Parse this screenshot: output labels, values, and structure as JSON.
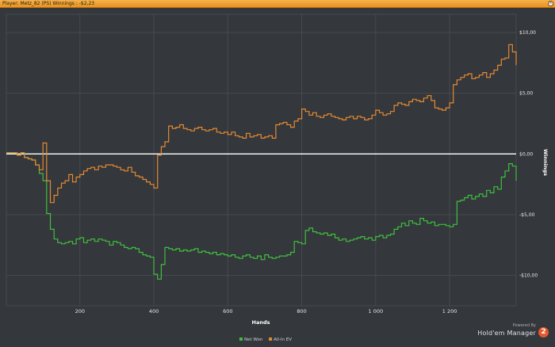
{
  "window": {
    "title": "Player: Metz_82 (PS) Winnings : -$2,23",
    "close_icon": "close-icon"
  },
  "colors": {
    "background": "#34373b",
    "grid": "#464a4f",
    "zero_line": "#ffffff",
    "net_won": "#3fbf3f",
    "all_in_ev": "#e58a32",
    "titlebar": "#f0a23a"
  },
  "branding": {
    "powered_by": "Powered By",
    "product": "Hold'em Manager",
    "logo_text": "2"
  },
  "chart_data": {
    "type": "line",
    "title": "",
    "xlabel": "Hands",
    "ylabel": "Winnings",
    "xlim": [
      1,
      1380
    ],
    "ylim": [
      -12.5,
      11.5
    ],
    "x_ticks": [
      {
        "value": 200,
        "label": "200"
      },
      {
        "value": 400,
        "label": "400"
      },
      {
        "value": 600,
        "label": "600"
      },
      {
        "value": 800,
        "label": "800"
      },
      {
        "value": 1000,
        "label": "1 000"
      },
      {
        "value": 1200,
        "label": "1 200"
      }
    ],
    "y_ticks": [
      {
        "value": 10,
        "label": "$10,00"
      },
      {
        "value": 5,
        "label": "$5,00"
      },
      {
        "value": 0,
        "label": "$0,00"
      },
      {
        "value": -5,
        "label": "-$5,00"
      },
      {
        "value": -10,
        "label": "-$10,00"
      }
    ],
    "grid": true,
    "legend": "bottom-center",
    "series": [
      {
        "name": "Net Won",
        "color": "#3fbf3f",
        "x": [
          1,
          20,
          30,
          40,
          50,
          60,
          70,
          80,
          90,
          100,
          110,
          120,
          130,
          140,
          150,
          160,
          170,
          180,
          190,
          200,
          210,
          220,
          230,
          240,
          250,
          260,
          270,
          280,
          290,
          300,
          310,
          320,
          330,
          340,
          350,
          360,
          370,
          380,
          390,
          400,
          410,
          420,
          430,
          440,
          450,
          460,
          470,
          480,
          490,
          500,
          510,
          520,
          530,
          540,
          550,
          560,
          570,
          580,
          590,
          600,
          610,
          620,
          630,
          640,
          650,
          660,
          670,
          680,
          690,
          700,
          710,
          720,
          730,
          740,
          750,
          760,
          770,
          780,
          790,
          800,
          810,
          820,
          830,
          840,
          850,
          860,
          870,
          880,
          890,
          900,
          910,
          920,
          930,
          940,
          950,
          960,
          970,
          980,
          990,
          1000,
          1010,
          1020,
          1030,
          1040,
          1050,
          1060,
          1070,
          1080,
          1090,
          1100,
          1110,
          1120,
          1130,
          1140,
          1150,
          1160,
          1170,
          1180,
          1190,
          1200,
          1210,
          1220,
          1230,
          1240,
          1250,
          1260,
          1270,
          1280,
          1290,
          1300,
          1310,
          1320,
          1330,
          1340,
          1350,
          1360,
          1370,
          1380
        ],
        "y": [
          0.1,
          0.1,
          -0.1,
          0.1,
          -0.3,
          -0.4,
          -0.5,
          -0.9,
          -1.6,
          -2.2,
          -4.9,
          -6.2,
          -7.0,
          -7.3,
          -7.4,
          -7.3,
          -7.2,
          -7.4,
          -7.0,
          -6.9,
          -7.3,
          -7.1,
          -7.0,
          -7.2,
          -7.0,
          -7.1,
          -7.2,
          -7.5,
          -7.2,
          -7.3,
          -7.5,
          -7.7,
          -7.8,
          -7.7,
          -7.8,
          -8.1,
          -8.3,
          -8.4,
          -8.5,
          -9.9,
          -10.3,
          -9.1,
          -7.7,
          -7.8,
          -7.9,
          -7.8,
          -8.0,
          -7.9,
          -8.0,
          -7.9,
          -7.8,
          -8.1,
          -8.0,
          -8.1,
          -8.2,
          -8.1,
          -8.3,
          -8.2,
          -8.3,
          -8.4,
          -8.3,
          -8.5,
          -8.6,
          -8.4,
          -8.3,
          -8.5,
          -8.6,
          -8.4,
          -8.7,
          -8.3,
          -8.5,
          -8.6,
          -8.5,
          -8.4,
          -8.4,
          -8.3,
          -8.1,
          -7.2,
          -7.3,
          -7.4,
          -6.3,
          -6.1,
          -6.4,
          -6.5,
          -6.6,
          -6.5,
          -6.7,
          -6.6,
          -6.9,
          -7.1,
          -7.0,
          -7.2,
          -7.1,
          -7.0,
          -6.9,
          -6.8,
          -7.0,
          -6.9,
          -7.1,
          -6.8,
          -6.7,
          -6.9,
          -6.7,
          -6.6,
          -6.2,
          -6.0,
          -5.7,
          -5.9,
          -5.5,
          -5.7,
          -5.8,
          -5.3,
          -5.5,
          -5.7,
          -5.6,
          -5.9,
          -5.8,
          -5.8,
          -5.9,
          -6.0,
          -5.8,
          -3.9,
          -3.8,
          -3.6,
          -3.4,
          -3.7,
          -3.5,
          -3.3,
          -3.5,
          -3.0,
          -3.2,
          -2.7,
          -2.9,
          -1.9,
          -1.4,
          -0.8,
          -1.0,
          -2.2
        ]
      },
      {
        "name": "All-In EV",
        "color": "#e58a32",
        "x": [
          1,
          20,
          30,
          40,
          50,
          60,
          70,
          80,
          90,
          100,
          110,
          120,
          130,
          140,
          150,
          160,
          170,
          180,
          190,
          200,
          210,
          220,
          230,
          240,
          250,
          260,
          270,
          280,
          290,
          300,
          310,
          320,
          330,
          340,
          350,
          360,
          370,
          380,
          390,
          400,
          410,
          420,
          430,
          440,
          450,
          460,
          470,
          480,
          490,
          500,
          510,
          520,
          530,
          540,
          550,
          560,
          570,
          580,
          590,
          600,
          610,
          620,
          630,
          640,
          650,
          660,
          670,
          680,
          690,
          700,
          710,
          720,
          730,
          740,
          750,
          760,
          770,
          780,
          790,
          800,
          810,
          820,
          830,
          840,
          850,
          860,
          870,
          880,
          890,
          900,
          910,
          920,
          930,
          940,
          950,
          960,
          970,
          980,
          990,
          1000,
          1010,
          1020,
          1030,
          1040,
          1050,
          1060,
          1070,
          1080,
          1090,
          1100,
          1110,
          1120,
          1130,
          1140,
          1150,
          1160,
          1170,
          1180,
          1190,
          1200,
          1210,
          1220,
          1230,
          1240,
          1250,
          1260,
          1270,
          1280,
          1290,
          1300,
          1310,
          1320,
          1330,
          1340,
          1350,
          1360,
          1370,
          1380
        ],
        "y": [
          0.1,
          0.1,
          -0.1,
          0.1,
          -0.3,
          -0.4,
          -0.5,
          -0.9,
          -1.3,
          0.9,
          -2.2,
          -4.0,
          -3.4,
          -2.8,
          -2.4,
          -2.2,
          -1.7,
          -2.3,
          -1.9,
          -1.7,
          -1.4,
          -1.2,
          -1.1,
          -1.3,
          -1.0,
          -1.1,
          -0.9,
          -0.9,
          -1.0,
          -1.1,
          -1.3,
          -1.4,
          -1.1,
          -1.5,
          -1.8,
          -1.9,
          -2.1,
          -2.3,
          -2.5,
          -2.8,
          -0.1,
          0.6,
          1.0,
          2.3,
          2.1,
          2.2,
          2.4,
          2.1,
          2.0,
          1.9,
          2.1,
          2.2,
          2.0,
          1.9,
          2.0,
          2.1,
          1.8,
          1.7,
          1.8,
          1.6,
          1.8,
          1.5,
          1.4,
          1.3,
          1.7,
          1.4,
          1.5,
          1.6,
          1.3,
          1.4,
          1.5,
          1.3,
          2.4,
          2.5,
          2.6,
          2.4,
          2.2,
          2.7,
          2.9,
          3.7,
          3.5,
          3.2,
          3.4,
          3.1,
          3.0,
          3.2,
          3.3,
          3.1,
          3.0,
          2.9,
          2.8,
          3.0,
          3.1,
          2.9,
          3.1,
          3.0,
          2.8,
          2.9,
          3.2,
          3.6,
          3.4,
          3.2,
          3.3,
          3.5,
          4.0,
          4.2,
          4.1,
          4.0,
          4.3,
          4.5,
          4.4,
          4.3,
          4.6,
          4.8,
          4.4,
          3.8,
          3.7,
          3.6,
          3.8,
          4.2,
          5.7,
          6.1,
          6.3,
          6.5,
          6.6,
          6.2,
          6.3,
          6.5,
          6.7,
          6.3,
          6.6,
          6.9,
          7.3,
          7.8,
          7.9,
          9.0,
          8.4,
          7.3
        ]
      }
    ]
  }
}
